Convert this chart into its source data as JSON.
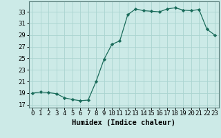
{
  "x": [
    0,
    1,
    2,
    3,
    4,
    5,
    6,
    7,
    8,
    9,
    10,
    11,
    12,
    13,
    14,
    15,
    16,
    17,
    18,
    19,
    20,
    21,
    22,
    23
  ],
  "y": [
    19.0,
    19.2,
    19.1,
    18.9,
    18.2,
    17.9,
    17.7,
    17.8,
    21.0,
    24.8,
    27.4,
    28.0,
    32.5,
    33.5,
    33.2,
    33.1,
    33.0,
    33.5,
    33.7,
    33.3,
    33.2,
    33.4,
    30.0,
    29.0
  ],
  "line_color": "#1a6b5a",
  "marker": "D",
  "marker_size": 2.2,
  "bg_color": "#cceae7",
  "grid_color": "#aad4d0",
  "xlabel": "Humidex (Indice chaleur)",
  "xlabel_fontsize": 7.5,
  "tick_fontsize": 6.5,
  "ylim": [
    16.5,
    34.8
  ],
  "yticks": [
    17,
    19,
    21,
    23,
    25,
    27,
    29,
    31,
    33
  ],
  "xlim": [
    -0.5,
    23.5
  ],
  "xticks": [
    0,
    1,
    2,
    3,
    4,
    5,
    6,
    7,
    8,
    9,
    10,
    11,
    12,
    13,
    14,
    15,
    16,
    17,
    18,
    19,
    20,
    21,
    22,
    23
  ]
}
